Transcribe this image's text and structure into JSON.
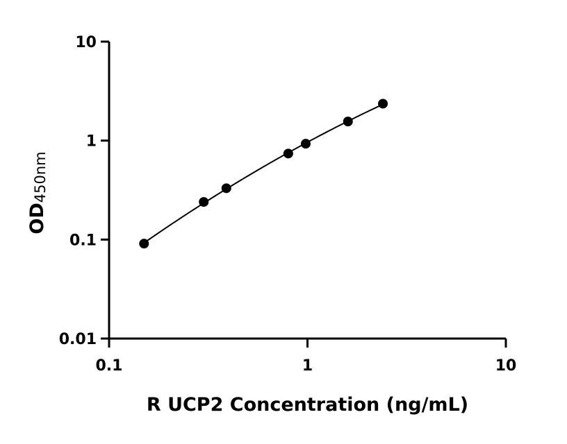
{
  "chart_data": {
    "type": "scatter",
    "x_scale": "log",
    "y_scale": "log",
    "xlim": [
      0.1,
      10
    ],
    "ylim": [
      0.01,
      10
    ],
    "x_ticks": [
      "0.1",
      "1",
      "10"
    ],
    "y_ticks": [
      "0.01",
      "0.1",
      "1",
      "10"
    ],
    "x_tick_values": [
      0.1,
      1,
      10
    ],
    "y_tick_values": [
      0.01,
      0.1,
      1,
      10
    ],
    "xlabel": "R UCP2 Concentration (ng/mL)",
    "ylabel_main": "OD",
    "ylabel_sub": "450nm",
    "grid": false,
    "fit_curve": true,
    "series": [
      {
        "x": [
          0.15,
          0.3,
          0.39,
          0.8,
          0.98,
          1.6,
          2.4
        ],
        "y": [
          0.091,
          0.24,
          0.33,
          0.74,
          0.93,
          1.56,
          2.36
        ]
      }
    ]
  }
}
